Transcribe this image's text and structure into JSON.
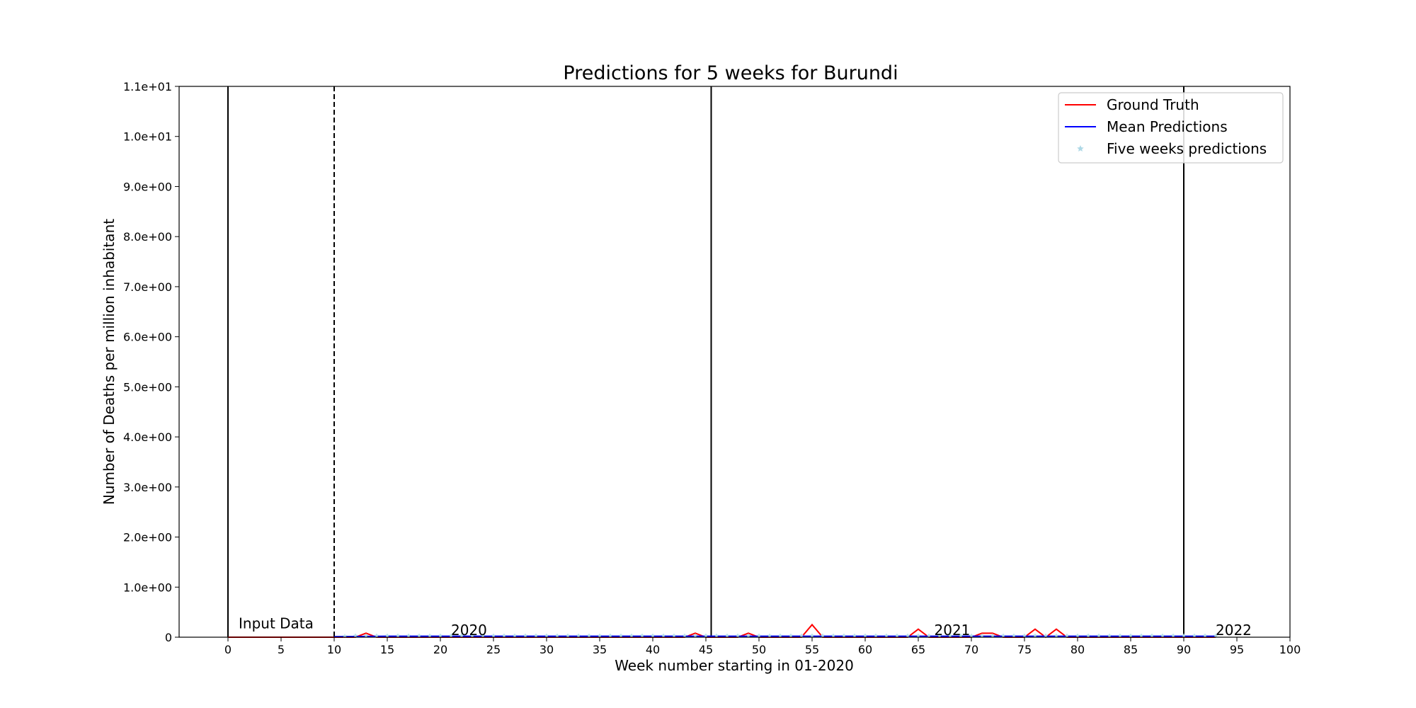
{
  "chart_data": {
    "type": "line",
    "title": "Predictions for 5 weeks for Burundi",
    "xlabel": "Week number starting in 01-2020",
    "ylabel": "Number of Deaths per million inhabitant",
    "xlim": [
      -4.6,
      100
    ],
    "ylim": [
      0,
      11
    ],
    "xticks": [
      0,
      5,
      10,
      15,
      20,
      25,
      30,
      35,
      40,
      45,
      50,
      55,
      60,
      65,
      70,
      75,
      80,
      85,
      90,
      95,
      100
    ],
    "yticks": [
      0,
      1,
      2,
      3,
      4,
      5,
      6,
      7,
      8,
      9,
      10,
      11
    ],
    "ytick_labels": [
      "0",
      "1.0e+00",
      "2.0e+00",
      "3.0e+00",
      "4.0e+00",
      "5.0e+00",
      "6.0e+00",
      "7.0e+00",
      "8.0e+00",
      "9.0e+00",
      "1.0e+01",
      "1.1e+01"
    ],
    "grid": false,
    "legend_position": "top-right",
    "vertical_lines": [
      {
        "x": 0,
        "style": "solid"
      },
      {
        "x": 10,
        "style": "dashed"
      },
      {
        "x": 45.5,
        "style": "solid"
      },
      {
        "x": 90,
        "style": "solid"
      }
    ],
    "annotations": [
      {
        "text": "Input Data",
        "x": 1,
        "y": 0.18
      },
      {
        "text": "2020",
        "x": 21,
        "y": 0.04
      },
      {
        "text": "2021",
        "x": 66.5,
        "y": 0.04
      },
      {
        "text": "2022",
        "x": 93,
        "y": 0.04
      }
    ],
    "series": [
      {
        "name": "Ground Truth",
        "color": "#ff0000",
        "style": "line",
        "x": [
          0,
          1,
          2,
          3,
          4,
          5,
          6,
          7,
          8,
          9,
          10,
          11,
          12,
          13,
          14,
          15,
          16,
          17,
          18,
          19,
          20,
          21,
          22,
          23,
          24,
          25,
          26,
          27,
          28,
          29,
          30,
          31,
          32,
          33,
          34,
          35,
          36,
          37,
          38,
          39,
          40,
          41,
          42,
          43,
          44,
          45,
          46,
          47,
          48,
          49,
          50,
          51,
          52,
          53,
          54,
          55,
          56,
          57,
          58,
          59,
          60,
          61,
          62,
          63,
          64,
          65,
          66,
          67,
          68,
          69,
          70,
          71,
          72,
          73,
          74,
          75,
          76,
          77,
          78,
          79,
          80,
          81,
          82,
          83,
          84,
          85,
          86,
          87,
          88,
          89,
          90,
          91,
          92,
          93
        ],
        "y": [
          0,
          0,
          0,
          0,
          0,
          0,
          0,
          0,
          0,
          0,
          0,
          0,
          0,
          0.08,
          0,
          0,
          0,
          0,
          0,
          0,
          0,
          0,
          0,
          0,
          0,
          0,
          0,
          0,
          0,
          0,
          0,
          0,
          0,
          0,
          0,
          0,
          0,
          0,
          0,
          0,
          0,
          0,
          0,
          0,
          0.08,
          0,
          0,
          0,
          0,
          0.08,
          0,
          0,
          0,
          0,
          0,
          0.25,
          0,
          0,
          0,
          0,
          0,
          0,
          0,
          0,
          0,
          0.16,
          0,
          0,
          0,
          0,
          0,
          0.08,
          0.08,
          0,
          0,
          0,
          0.16,
          0,
          0.16,
          0,
          0,
          0,
          0,
          0,
          0,
          0,
          0,
          0,
          0,
          0,
          0,
          0,
          0,
          0
        ]
      },
      {
        "name": "Mean Predictions",
        "color": "#0000ff",
        "style": "line",
        "x": [
          10,
          15,
          20,
          25,
          30,
          35,
          40,
          45,
          50,
          55,
          60,
          65,
          70,
          75,
          80,
          85,
          90,
          93
        ],
        "y": [
          0.01,
          0.02,
          0.02,
          0.02,
          0.02,
          0.02,
          0.02,
          0.02,
          0.02,
          0.02,
          0.02,
          0.02,
          0.02,
          0.02,
          0.02,
          0.02,
          0.02,
          0.02
        ]
      },
      {
        "name": "Five weeks predictions",
        "color": "#add8e6",
        "style": "star",
        "x": [
          11,
          12,
          13,
          14,
          15,
          16,
          17,
          18,
          19,
          20,
          21,
          22,
          23,
          24,
          25,
          26,
          27,
          28,
          29,
          30,
          31,
          32,
          33,
          34,
          35,
          36,
          37,
          38,
          39,
          40,
          41,
          42,
          43,
          44,
          45,
          46,
          47,
          48,
          49,
          50,
          51,
          52,
          53,
          54,
          55,
          56,
          57,
          58,
          59,
          60,
          61,
          62,
          63,
          64,
          65,
          66,
          67,
          68,
          69,
          70,
          71,
          72,
          73,
          74,
          75,
          76,
          77,
          78,
          79,
          80,
          81,
          82,
          83,
          84,
          85,
          86,
          87,
          88,
          89,
          90,
          91,
          92,
          93
        ],
        "y": [
          0.02,
          0.03,
          0.03,
          0.03,
          0.03,
          0.03,
          0.03,
          0.03,
          0.03,
          0.03,
          0.03,
          0.03,
          0.03,
          0.03,
          0.03,
          0.03,
          0.03,
          0.03,
          0.03,
          0.03,
          0.03,
          0.03,
          0.03,
          0.03,
          0.03,
          0.03,
          0.03,
          0.03,
          0.03,
          0.03,
          0.03,
          0.03,
          0.03,
          0.03,
          0.03,
          0.03,
          0.03,
          0.03,
          0.03,
          0.03,
          0.03,
          0.03,
          0.03,
          0.03,
          0.03,
          0.03,
          0.03,
          0.03,
          0.03,
          0.03,
          0.03,
          0.03,
          0.03,
          0.03,
          0.03,
          0.03,
          0.03,
          0.03,
          0.03,
          0.03,
          0.03,
          0.03,
          0.03,
          0.03,
          0.03,
          0.03,
          0.03,
          0.03,
          0.03,
          0.03,
          0.03,
          0.03,
          0.03,
          0.03,
          0.03,
          0.03,
          0.03,
          0.03,
          0.03,
          0.03,
          0.03,
          0.03,
          0.03
        ]
      }
    ]
  }
}
